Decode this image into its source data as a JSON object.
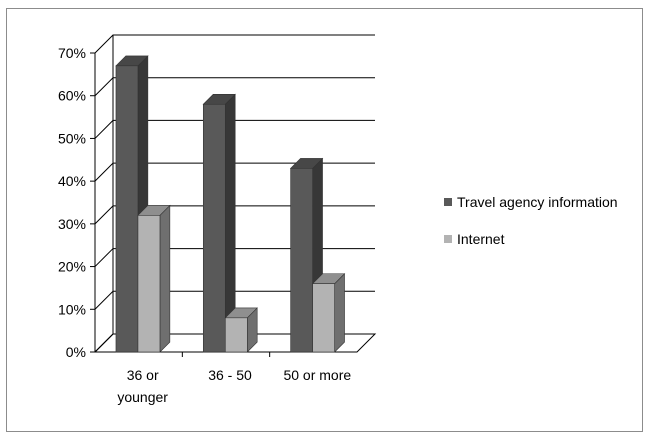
{
  "chart_data": {
    "type": "bar",
    "style": "3d-clustered-column",
    "categories": [
      "36 or younger",
      "36 - 50",
      "50 or more"
    ],
    "category_lines": [
      [
        "36 or",
        "younger"
      ],
      [
        "36 - 50"
      ],
      [
        "50 or more"
      ]
    ],
    "series": [
      {
        "name": "Travel agency information",
        "values": [
          67,
          58,
          43
        ],
        "color": "#595959"
      },
      {
        "name": "Internet",
        "values": [
          32,
          8,
          16
        ],
        "color": "#b3b3b3"
      }
    ],
    "ylim": [
      0,
      70
    ],
    "yticks": [
      "0%",
      "10%",
      "20%",
      "30%",
      "40%",
      "50%",
      "60%",
      "70%"
    ],
    "grid": true,
    "legend_position": "right",
    "title": "",
    "xlabel": "",
    "ylabel": ""
  }
}
